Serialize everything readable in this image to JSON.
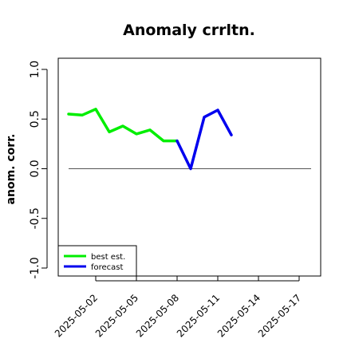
{
  "chart_data": {
    "type": "line",
    "title": "Anomaly crrltn.",
    "xlabel": "",
    "ylabel": "anom. corr.",
    "ylim": [
      -1.0,
      1.0
    ],
    "yticks": [
      "-1.0",
      "-0.5",
      "0.0",
      "0.5",
      "1.0"
    ],
    "xticks": [
      "2025-05-02",
      "2025-05-05",
      "2025-05-08",
      "2025-05-11",
      "2025-05-14",
      "2025-05-17"
    ],
    "highlight_tick": "2025-05-08",
    "highlight_color": "#228B22",
    "reference_line": 0,
    "grid": false,
    "legend_position": "bottom-left",
    "series": [
      {
        "name": "best est.",
        "color": "#00ee00",
        "x": [
          "2025-04-30",
          "2025-05-01",
          "2025-05-02",
          "2025-05-03",
          "2025-05-04",
          "2025-05-05",
          "2025-05-06",
          "2025-05-07",
          "2025-05-08"
        ],
        "values": [
          0.55,
          0.54,
          0.6,
          0.37,
          0.43,
          0.35,
          0.39,
          0.28,
          0.28
        ]
      },
      {
        "name": "forecast",
        "color": "#0000ee",
        "x": [
          "2025-05-08",
          "2025-05-09",
          "2025-05-10",
          "2025-05-11",
          "2025-05-12"
        ],
        "values": [
          0.28,
          0.0,
          0.52,
          0.59,
          0.34
        ]
      }
    ]
  }
}
